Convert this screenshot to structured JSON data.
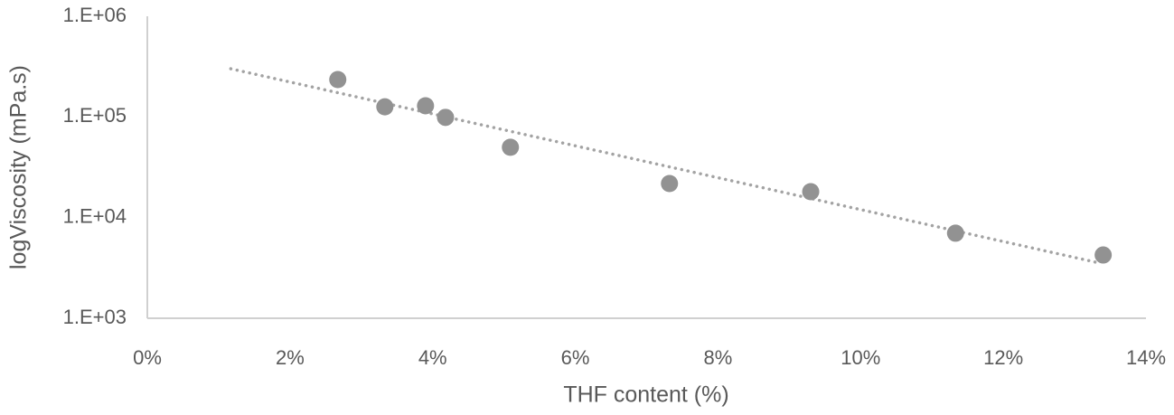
{
  "chart_data": {
    "type": "scatter",
    "x_label": "THF content (%)",
    "y_label": "logViscosity (mPa.s)",
    "series": [
      {
        "color": "#929292",
        "x": [
          2.67,
          3.33,
          3.9,
          4.18,
          5.09,
          7.32,
          9.3,
          11.33,
          13.4
        ],
        "values": [
          235000,
          126000,
          129000,
          99000,
          50000,
          21800,
          18100,
          7000,
          4250
        ]
      }
    ],
    "trendline": {
      "color": "#a3a3a3",
      "style": "dotted",
      "x": [
        1.17,
        13.3
      ],
      "values": [
        301000,
        3600
      ]
    },
    "xlim": [
      0,
      14
    ],
    "xticks": [
      {
        "value": 0,
        "label": "0%"
      },
      {
        "value": 2,
        "label": "2%"
      },
      {
        "value": 4,
        "label": "4%"
      },
      {
        "value": 6,
        "label": "6%"
      },
      {
        "value": 8,
        "label": "8%"
      },
      {
        "value": 10,
        "label": "10%"
      },
      {
        "value": 12,
        "label": "12%"
      },
      {
        "value": 14,
        "label": "14%"
      }
    ],
    "ylim": [
      1000,
      1000000
    ],
    "yticks": [
      {
        "value": 1000,
        "label": "1.E+03"
      },
      {
        "value": 10000,
        "label": "1.E+04"
      },
      {
        "value": 100000,
        "label": "1.E+05"
      },
      {
        "value": 1000000,
        "label": "1.E+06"
      }
    ],
    "y_scale": "log",
    "grid": false
  }
}
